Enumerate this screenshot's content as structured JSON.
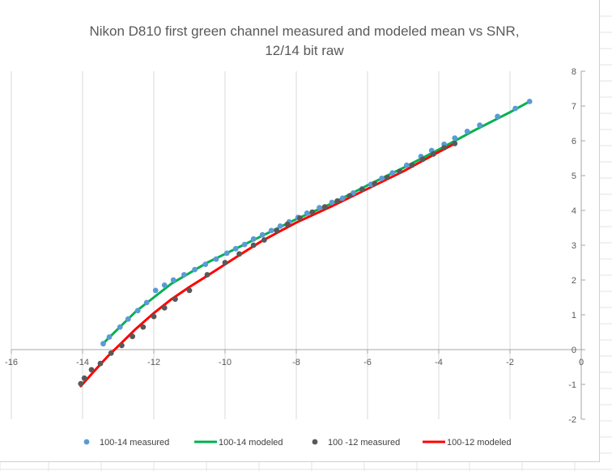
{
  "chart_data": {
    "type": "scatter",
    "title_lines": [
      "Nikon D810 first green channel measured and modeled mean vs SNR,",
      "12/14 bit raw"
    ],
    "xlabel": "",
    "ylabel": "",
    "xlim": [
      -16,
      0
    ],
    "ylim": [
      -2,
      8
    ],
    "x_ticks": [
      -16,
      -14,
      -12,
      -10,
      -8,
      -6,
      -4,
      -2,
      0
    ],
    "x_tick_labels": [
      "-16",
      "-14",
      "-12",
      "-10",
      "-8",
      "-6",
      "-4",
      "-2",
      "0"
    ],
    "y_ticks": [
      -2,
      -1,
      0,
      1,
      2,
      3,
      4,
      5,
      6,
      7,
      8
    ],
    "y_tick_labels": [
      "-2",
      "-1",
      "0",
      "1",
      "2",
      "3",
      "4",
      "5",
      "6",
      "7",
      "8"
    ],
    "gridlines": "vertical",
    "legend_position": "bottom",
    "series": [
      {
        "name": "100-14 measured",
        "kind": "points",
        "color": "#5b9bd5",
        "points": [
          [
            -13.42,
            0.17
          ],
          [
            -13.25,
            0.36
          ],
          [
            -12.95,
            0.65
          ],
          [
            -12.72,
            0.88
          ],
          [
            -12.45,
            1.12
          ],
          [
            -12.2,
            1.35
          ],
          [
            -11.95,
            1.7
          ],
          [
            -11.7,
            1.85
          ],
          [
            -11.45,
            2.0
          ],
          [
            -11.15,
            2.15
          ],
          [
            -10.85,
            2.3
          ],
          [
            -10.55,
            2.45
          ],
          [
            -10.25,
            2.6
          ],
          [
            -9.95,
            2.77
          ],
          [
            -9.7,
            2.9
          ],
          [
            -9.45,
            3.02
          ],
          [
            -9.2,
            3.18
          ],
          [
            -8.95,
            3.3
          ],
          [
            -8.7,
            3.42
          ],
          [
            -8.45,
            3.55
          ],
          [
            -8.2,
            3.67
          ],
          [
            -7.95,
            3.8
          ],
          [
            -7.7,
            3.92
          ],
          [
            -7.35,
            4.08
          ],
          [
            -7.0,
            4.23
          ],
          [
            -6.7,
            4.35
          ],
          [
            -6.4,
            4.5
          ],
          [
            -6.15,
            4.62
          ],
          [
            -5.9,
            4.75
          ],
          [
            -5.6,
            4.92
          ],
          [
            -5.3,
            5.08
          ],
          [
            -4.9,
            5.3
          ],
          [
            -4.5,
            5.55
          ],
          [
            -4.2,
            5.72
          ],
          [
            -3.85,
            5.9
          ],
          [
            -3.55,
            6.08
          ],
          [
            -3.2,
            6.27
          ],
          [
            -2.85,
            6.45
          ],
          [
            -2.35,
            6.7
          ],
          [
            -1.85,
            6.93
          ],
          [
            -1.45,
            7.13
          ]
        ]
      },
      {
        "name": "100-14 modeled",
        "kind": "line",
        "color": "#00b050",
        "points": [
          [
            -13.4,
            0.2
          ],
          [
            -13.0,
            0.6
          ],
          [
            -12.5,
            1.1
          ],
          [
            -12.0,
            1.5
          ],
          [
            -11.5,
            1.9
          ],
          [
            -11.0,
            2.2
          ],
          [
            -10.5,
            2.5
          ],
          [
            -10.0,
            2.75
          ],
          [
            -9.5,
            3.0
          ],
          [
            -9.0,
            3.25
          ],
          [
            -8.5,
            3.5
          ],
          [
            -8.0,
            3.75
          ],
          [
            -7.0,
            4.2
          ],
          [
            -6.0,
            4.72
          ],
          [
            -5.0,
            5.22
          ],
          [
            -4.0,
            5.75
          ],
          [
            -3.0,
            6.3
          ],
          [
            -2.0,
            6.82
          ],
          [
            -1.45,
            7.13
          ]
        ]
      },
      {
        "name": "100 -12 measured",
        "kind": "points",
        "color": "#595959",
        "points": [
          [
            -14.05,
            -0.98
          ],
          [
            -13.95,
            -0.82
          ],
          [
            -13.75,
            -0.58
          ],
          [
            -13.5,
            -0.4
          ],
          [
            -13.2,
            -0.1
          ],
          [
            -12.9,
            0.12
          ],
          [
            -12.6,
            0.38
          ],
          [
            -12.3,
            0.65
          ],
          [
            -12.0,
            0.95
          ],
          [
            -11.7,
            1.2
          ],
          [
            -11.4,
            1.45
          ],
          [
            -11.0,
            1.7
          ],
          [
            -10.5,
            2.15
          ],
          [
            -10.0,
            2.5
          ],
          [
            -9.6,
            2.75
          ],
          [
            -9.2,
            3.0
          ],
          [
            -8.9,
            3.15
          ],
          [
            -8.55,
            3.42
          ],
          [
            -8.25,
            3.6
          ],
          [
            -7.9,
            3.78
          ],
          [
            -7.55,
            3.95
          ],
          [
            -7.2,
            4.1
          ],
          [
            -6.85,
            4.27
          ],
          [
            -6.5,
            4.42
          ],
          [
            -6.15,
            4.6
          ],
          [
            -5.8,
            4.77
          ],
          [
            -5.45,
            4.95
          ],
          [
            -5.1,
            5.12
          ],
          [
            -4.75,
            5.3
          ],
          [
            -4.45,
            5.47
          ],
          [
            -4.15,
            5.62
          ],
          [
            -3.85,
            5.8
          ],
          [
            -3.55,
            5.92
          ]
        ]
      },
      {
        "name": "100-12 modeled",
        "kind": "line",
        "color": "#ff0000",
        "points": [
          [
            -14.05,
            -1.05
          ],
          [
            -13.7,
            -0.65
          ],
          [
            -13.3,
            -0.2
          ],
          [
            -12.9,
            0.2
          ],
          [
            -12.5,
            0.6
          ],
          [
            -12.0,
            1.05
          ],
          [
            -11.5,
            1.45
          ],
          [
            -11.0,
            1.8
          ],
          [
            -10.5,
            2.12
          ],
          [
            -10.0,
            2.45
          ],
          [
            -9.5,
            2.78
          ],
          [
            -9.0,
            3.1
          ],
          [
            -8.5,
            3.38
          ],
          [
            -8.0,
            3.65
          ],
          [
            -7.0,
            4.12
          ],
          [
            -6.0,
            4.62
          ],
          [
            -5.0,
            5.12
          ],
          [
            -4.0,
            5.68
          ],
          [
            -3.55,
            5.92
          ]
        ]
      }
    ]
  }
}
